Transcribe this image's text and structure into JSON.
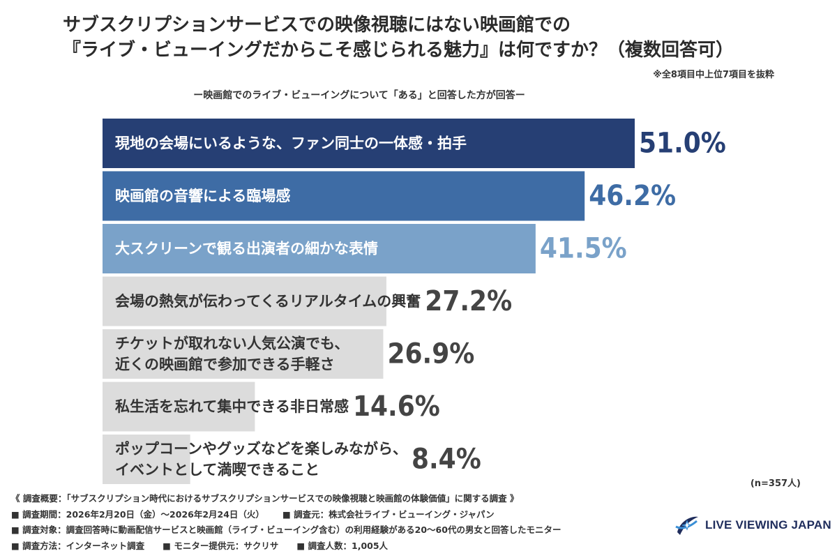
{
  "title": {
    "line1": "サブスクリプションサービスでの映像視聴にはない映画館での",
    "line2": "『ライブ・ビューイングだからこそ感じられる魅力』は何ですか？（複数回答可）"
  },
  "note": "※全8項目中上位7項目を抜粋",
  "subtitle": "ー映画館でのライブ・ビューイングについて「ある」と回答した方が回答ー",
  "sample": "(n=357人)",
  "chart_data": {
    "type": "bar",
    "orientation": "horizontal",
    "unit": "%",
    "xlim": [
      0,
      51
    ],
    "categories": [
      [
        "現地の会場にいるような、ファン同士の一体感・拍手"
      ],
      [
        "映画館の音響による臨場感"
      ],
      [
        "大スクリーンで観る出演者の細かな表情"
      ],
      [
        "会場の熱気が伝わってくるリアルタイムの興奮"
      ],
      [
        "チケットが取れない人気公演でも、",
        "近くの映画館で参加できる手軽さ"
      ],
      [
        "私生活を忘れて集中できる非日常感"
      ],
      [
        "ポップコーンやグッズなどを楽しみながら、",
        "イベントとして満喫できること"
      ]
    ],
    "values": [
      51.0,
      46.2,
      41.5,
      27.2,
      26.9,
      14.6,
      8.4
    ],
    "value_labels": [
      "51.0%",
      "46.2%",
      "41.5%",
      "27.2%",
      "26.9%",
      "14.6%",
      "8.4%"
    ],
    "bar_colors": [
      "#263f74",
      "#3e6ca5",
      "#7aa2c9",
      "#dcdcdc",
      "#dcdcdc",
      "#dcdcdc",
      "#dcdcdc"
    ],
    "label_colors": [
      "#ffffff",
      "#ffffff",
      "#ffffff",
      "#333333",
      "#333333",
      "#333333",
      "#333333"
    ],
    "value_colors": [
      "#263f74",
      "#3e6ca5",
      "#7aa2c9",
      "#444444",
      "#444444",
      "#444444",
      "#444444"
    ]
  },
  "survey": {
    "overview": "《 調査概要：「サブスクリプション時代におけるサブスクリプションサービスでの映像視聴と映画館の体験価値」に関する調査 》",
    "period": "■ 調査期間：2026年2月20日（金）〜2026年2月24日（火）",
    "organizer": "■ 調査元：株式会社ライブ・ビューイング・ジャパン",
    "target": "■ 調査対象：調査回答時に動画配信サービスと映画館（ライブ・ビューイング含む）の利用経験がある20〜60代の男女と回答したモニター",
    "method": "■ 調査方法：インターネット調査",
    "panel": "■ モニター提供元：サクリサ",
    "count": "■ 調査人数：1,005人"
  },
  "logo": {
    "text": "LIVE VIEWING JAPAN",
    "icon": "live-viewing-logo-icon",
    "colors": {
      "navy": "#1f2d5c",
      "blue": "#3a8fd6"
    }
  }
}
